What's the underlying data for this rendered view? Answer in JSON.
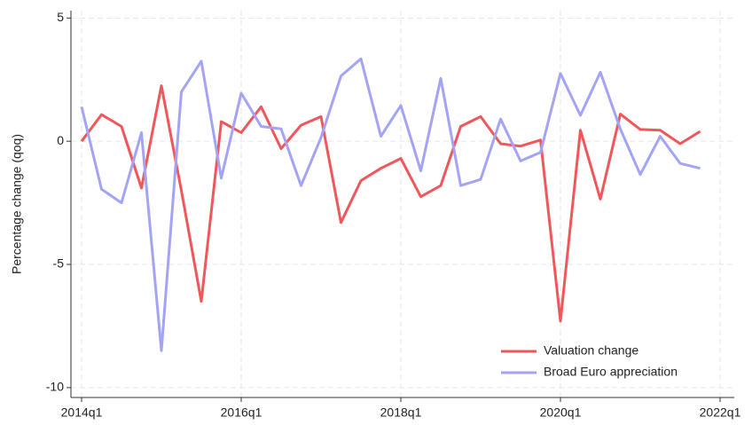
{
  "chart_data": {
    "type": "line",
    "y_label": "Percentage change (qoq)",
    "categories": [
      "2014q1",
      null,
      null,
      null,
      null,
      null,
      null,
      null,
      "2016q1",
      null,
      null,
      null,
      null,
      null,
      null,
      null,
      "2018q1",
      null,
      null,
      null,
      null,
      null,
      null,
      null,
      "2020q1",
      null,
      null,
      null,
      null,
      null,
      null,
      null,
      "2022q1"
    ],
    "series": [
      {
        "name": "Valuation change",
        "color": "#f0575b",
        "values": [
          0,
          1.08,
          0.6,
          -1.9,
          2.25,
          -2.0,
          -6.5,
          0.8,
          0.35,
          1.4,
          -0.3,
          0.65,
          1.0,
          -3.3,
          -1.6,
          -1.1,
          -0.7,
          -2.25,
          -1.8,
          0.6,
          1.0,
          -0.1,
          -0.2,
          0.05,
          -7.3,
          0.45,
          -2.35,
          1.1,
          0.48,
          0.45,
          -0.1,
          0.4,
          null
        ]
      },
      {
        "name": "Broad Euro appreciation",
        "color": "#a3a3f7",
        "values": [
          1.4,
          -1.95,
          -2.5,
          0.35,
          -8.5,
          2.0,
          3.25,
          -1.5,
          1.95,
          0.6,
          0.5,
          -1.8,
          0.15,
          2.65,
          3.35,
          0.2,
          1.45,
          -1.2,
          2.55,
          -1.8,
          -1.55,
          0.9,
          -0.8,
          -0.45,
          2.75,
          1.05,
          2.8,
          0.5,
          -1.35,
          0.2,
          -0.9,
          -1.1,
          null
        ]
      }
    ],
    "ylim": [
      -10.4,
      5.3
    ],
    "yticks": [
      5,
      0,
      -5,
      -10
    ],
    "grid": true,
    "legend": "lower right"
  }
}
